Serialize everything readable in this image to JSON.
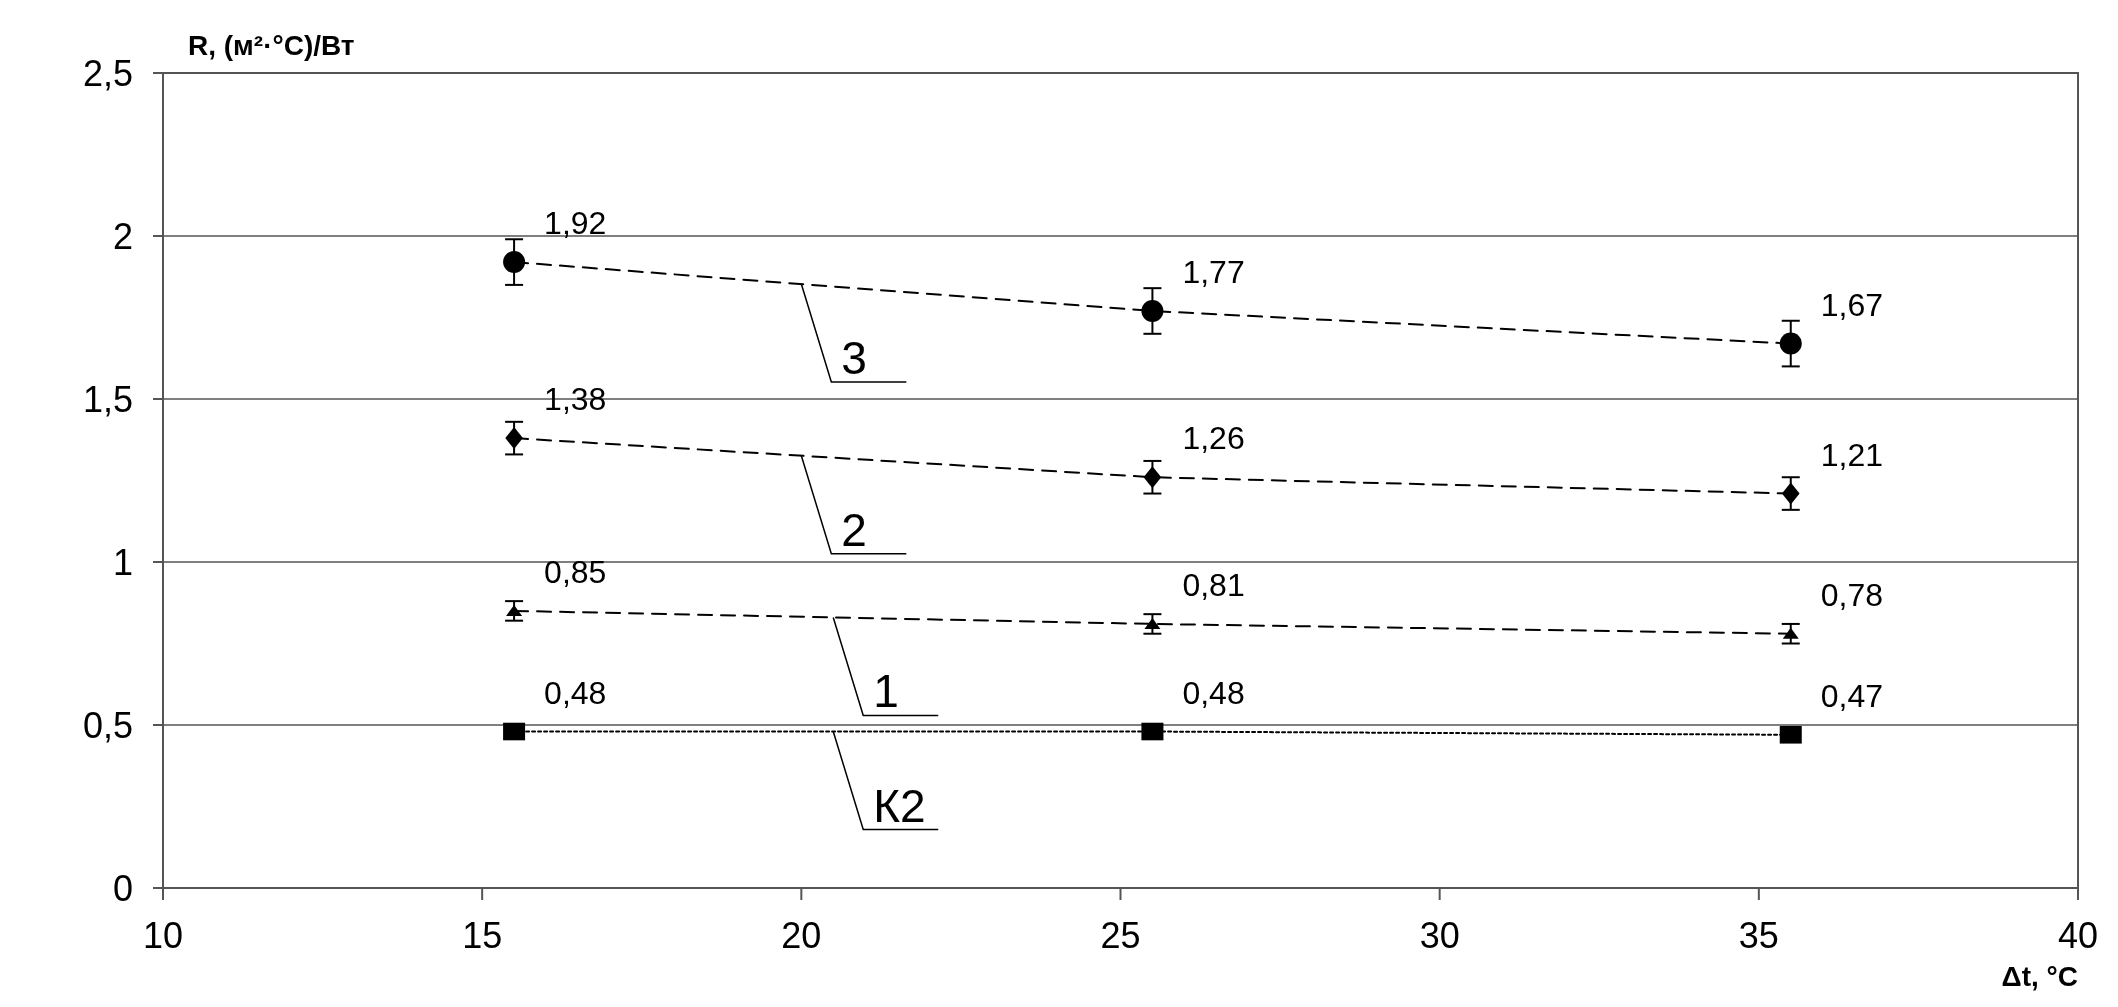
{
  "chart_data": {
    "type": "line",
    "xlabel": "Δt, °C",
    "ylabel": "R, (м²·°С)/Вт",
    "xlim": [
      10,
      40
    ],
    "xticks": [
      10,
      15,
      20,
      25,
      30,
      35,
      40
    ],
    "ylim": [
      0,
      2.5
    ],
    "yticks": [
      {
        "value": 0,
        "label": "0"
      },
      {
        "value": 0.5,
        "label": "0,5"
      },
      {
        "value": 1,
        "label": "1"
      },
      {
        "value": 1.5,
        "label": "1,5"
      },
      {
        "value": 2,
        "label": "2"
      },
      {
        "value": 2.5,
        "label": "2,5"
      }
    ],
    "grid": "y",
    "series": [
      {
        "name": "3",
        "color": "#000000",
        "x": [
          15.5,
          25.5,
          35.5
        ],
        "values": [
          1.92,
          1.77,
          1.67
        ],
        "errors": [
          0.07,
          0.07,
          0.07
        ],
        "value_labels": [
          "1,92",
          "1,77",
          "1,67"
        ],
        "marker": "circle",
        "line_style": "dashed"
      },
      {
        "name": "2",
        "color": "#000000",
        "x": [
          15.5,
          25.5,
          35.5
        ],
        "values": [
          1.38,
          1.26,
          1.21
        ],
        "errors": [
          0.05,
          0.05,
          0.05
        ],
        "value_labels": [
          "1,38",
          "1,26",
          "1,21"
        ],
        "marker": "diamond",
        "line_style": "dashed"
      },
      {
        "name": "1",
        "color": "#000000",
        "x": [
          15.5,
          25.5,
          35.5
        ],
        "values": [
          0.85,
          0.81,
          0.78
        ],
        "errors": [
          0.03,
          0.03,
          0.03
        ],
        "value_labels": [
          "0,85",
          "0,81",
          "0,78"
        ],
        "marker": "triangle",
        "line_style": "dashed"
      },
      {
        "name": "К2",
        "color": "#000000",
        "x": [
          15.5,
          25.5,
          35.5
        ],
        "values": [
          0.48,
          0.48,
          0.47
        ],
        "value_labels": [
          "0,48",
          "0,48",
          "0,47"
        ],
        "marker": "square",
        "line_style": "dotted"
      }
    ]
  }
}
